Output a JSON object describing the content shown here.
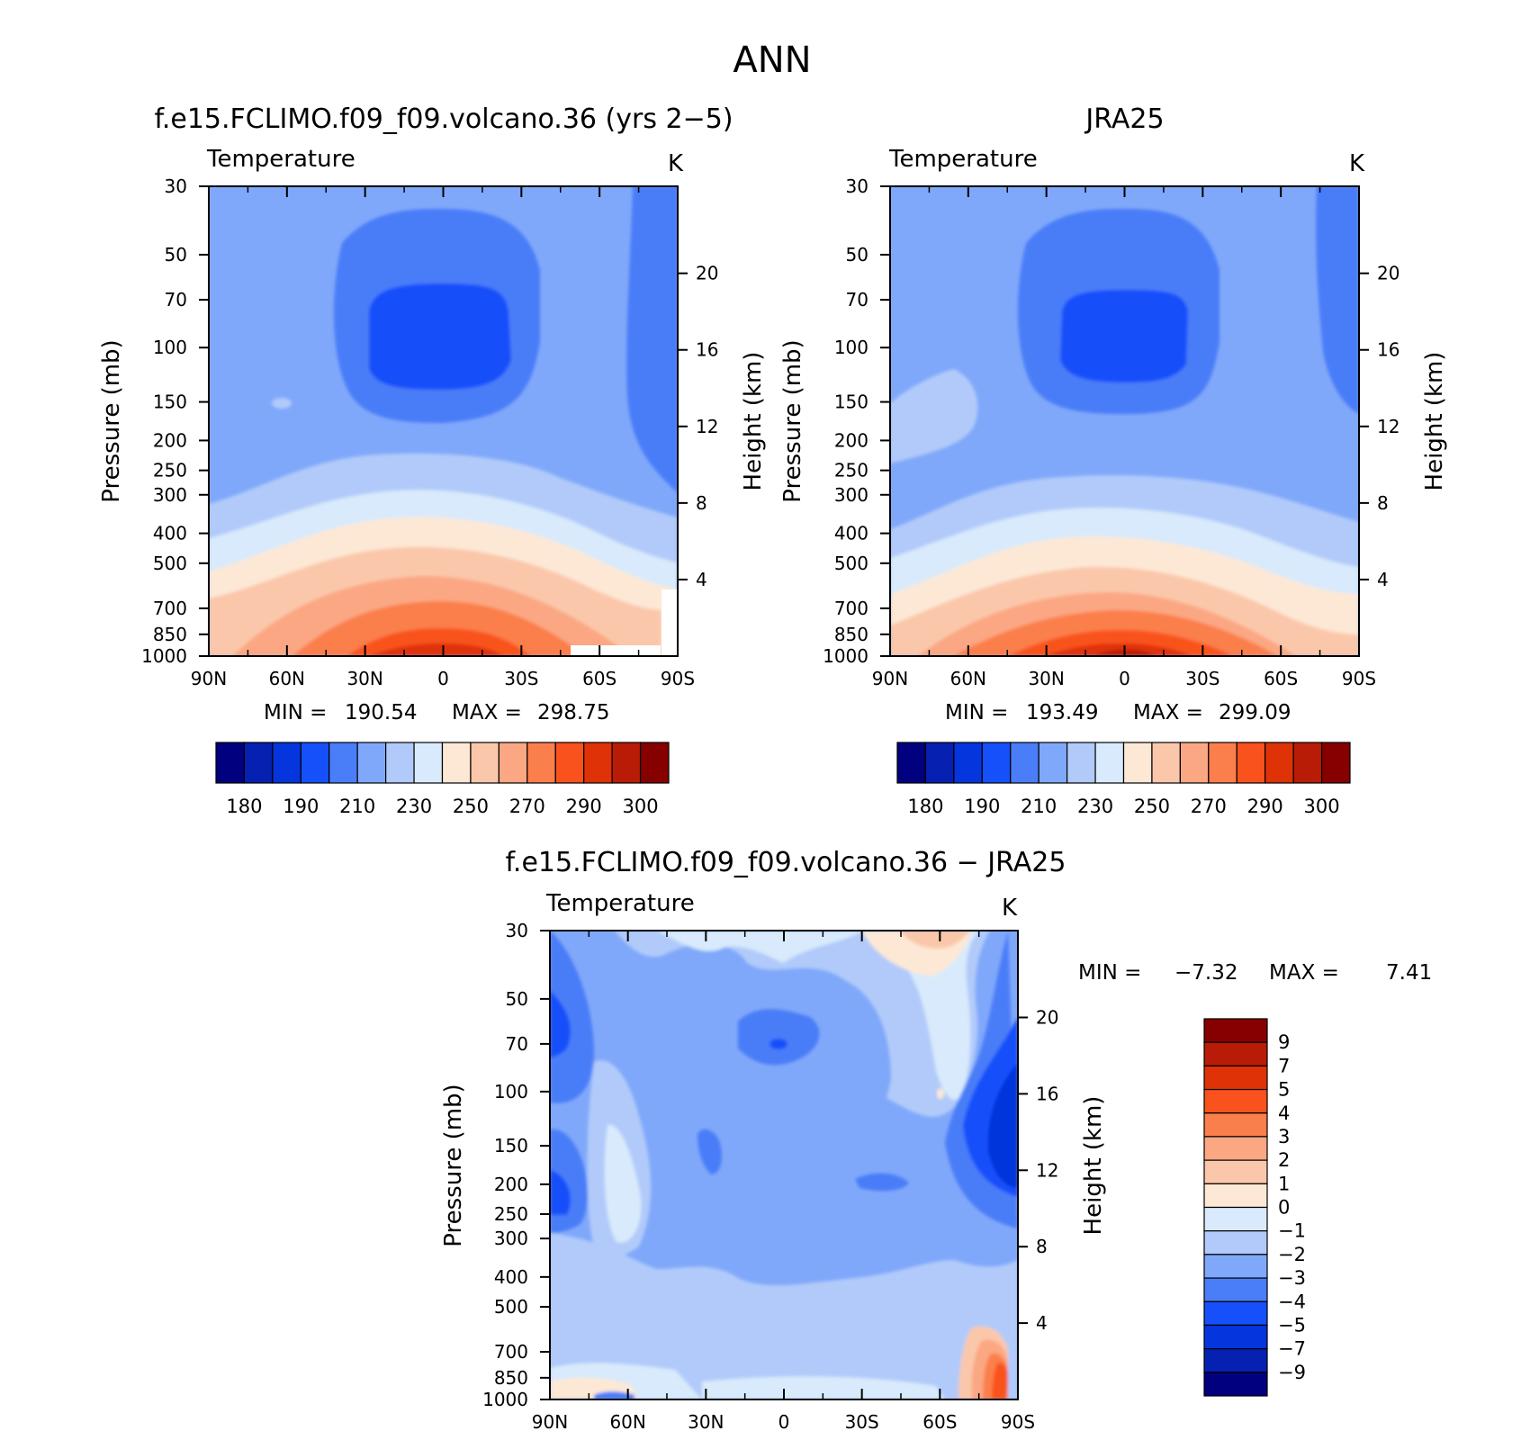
{
  "figure": {
    "title": "ANN"
  },
  "chart_data": [
    {
      "type": "heatmap",
      "title": "f.e15.FCLIMO.f09_f09.volcano.36 (yrs 2−5)",
      "subtitle": "Temperature",
      "units": "K",
      "xlabel": "",
      "ylabel": "Pressure (mb)",
      "y2label": "Height (km)",
      "x_ticks": [
        "90N",
        "60N",
        "30N",
        "0",
        "30S",
        "60S",
        "90S"
      ],
      "y_ticks": [
        "30",
        "50",
        "70",
        "100",
        "150",
        "200",
        "250",
        "300",
        "400",
        "500",
        "700",
        "850",
        "1000"
      ],
      "y2_ticks": [
        "20",
        "16",
        "12",
        "8",
        "4"
      ],
      "ylim": [
        1000,
        30
      ],
      "y_scale": "log",
      "min_label": "MIN =",
      "max_label": "MAX =",
      "min": "190.54",
      "max": "298.75",
      "colorbar_labels": [
        "180",
        "190",
        "210",
        "230",
        "250",
        "270",
        "290",
        "300"
      ],
      "colorbar_colors": [
        "#01007e",
        "#0620b1",
        "#0535dc",
        "#1650fa",
        "#4a7df8",
        "#80a8fa",
        "#b1cafa",
        "#d8eafb",
        "#fde8d6",
        "#fbc7aa",
        "#fba783",
        "#fb7f4c",
        "#f9521c",
        "#df3207",
        "#b91c06",
        "#860000"
      ]
    },
    {
      "type": "heatmap",
      "title": "JRA25",
      "subtitle": "Temperature",
      "units": "K",
      "xlabel": "",
      "ylabel": "Pressure (mb)",
      "y2label": "Height (km)",
      "x_ticks": [
        "90N",
        "60N",
        "30N",
        "0",
        "30S",
        "60S",
        "90S"
      ],
      "y_ticks": [
        "30",
        "50",
        "70",
        "100",
        "150",
        "200",
        "250",
        "300",
        "400",
        "500",
        "700",
        "850",
        "1000"
      ],
      "y2_ticks": [
        "20",
        "16",
        "12",
        "8",
        "4"
      ],
      "ylim": [
        1000,
        30
      ],
      "y_scale": "log",
      "min_label": "MIN =",
      "max_label": "MAX =",
      "min": "193.49",
      "max": "299.09",
      "colorbar_labels": [
        "180",
        "190",
        "210",
        "230",
        "250",
        "270",
        "290",
        "300"
      ]
    },
    {
      "type": "heatmap",
      "title": "f.e15.FCLIMO.f09_f09.volcano.36 − JRA25",
      "subtitle": "Temperature",
      "units": "K",
      "xlabel": "",
      "ylabel": "Pressure (mb)",
      "y2label": "Height (km)",
      "x_ticks": [
        "90N",
        "60N",
        "30N",
        "0",
        "30S",
        "60S",
        "90S"
      ],
      "y_ticks": [
        "30",
        "50",
        "70",
        "100",
        "150",
        "200",
        "250",
        "300",
        "400",
        "500",
        "700",
        "850",
        "1000"
      ],
      "y2_ticks": [
        "20",
        "16",
        "12",
        "8",
        "4"
      ],
      "ylim": [
        1000,
        30
      ],
      "y_scale": "log",
      "min_label": "MIN =",
      "max_label": "MAX =",
      "min": "−7.32",
      "max": "7.41",
      "colorbar_labels": [
        "9",
        "7",
        "5",
        "4",
        "3",
        "2",
        "1",
        "0",
        "−1",
        "−2",
        "−3",
        "−4",
        "−5",
        "−7",
        "−9"
      ]
    }
  ]
}
